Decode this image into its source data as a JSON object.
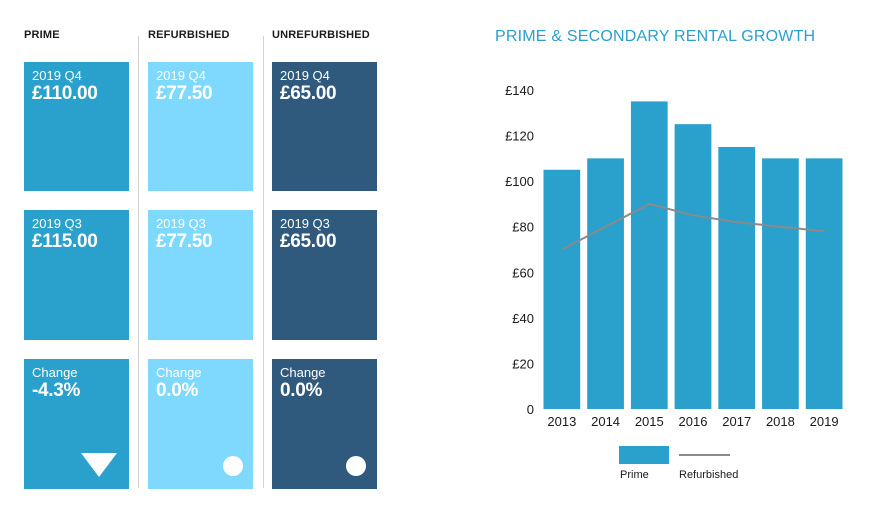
{
  "columns": [
    {
      "header": "PRIME",
      "tiles": [
        {
          "label": "2019 Q4",
          "value": "£110.00"
        },
        {
          "label": "2019 Q3",
          "value": "£115.00"
        },
        {
          "label": "Change",
          "value": "-4.3%"
        }
      ],
      "indicator": "down-triangle-icon"
    },
    {
      "header": "REFURBISHED",
      "tiles": [
        {
          "label": "2019 Q4",
          "value": "£77.50"
        },
        {
          "label": "2019 Q3",
          "value": "£77.50"
        },
        {
          "label": "Change",
          "value": "0.0%"
        }
      ],
      "indicator": "circle-icon"
    },
    {
      "header": "UNREFURBISHED",
      "tiles": [
        {
          "label": "2019 Q4",
          "value": "£65.00"
        },
        {
          "label": "2019 Q3",
          "value": "£65.00"
        },
        {
          "label": "Change",
          "value": "0.0%"
        }
      ],
      "indicator": "circle-icon"
    }
  ],
  "colors": {
    "prime": "#2aa0cc",
    "refurbished": "#7fd9ff",
    "unrefurbished": "#2f5a7e",
    "refurbished_line": "#8a8a8a"
  },
  "chart_data": {
    "type": "bar",
    "title": "PRIME & SECONDARY RENTAL GROWTH",
    "categories": [
      "2013",
      "2014",
      "2015",
      "2016",
      "2017",
      "2018",
      "2019"
    ],
    "series": [
      {
        "name": "Prime",
        "type": "bar",
        "values": [
          105,
          110,
          135,
          125,
          115,
          110,
          110
        ]
      },
      {
        "name": "Refurbished",
        "type": "line",
        "values": [
          70,
          80,
          90,
          85,
          82,
          80,
          78
        ]
      }
    ],
    "ylim": [
      0,
      140
    ],
    "yticks": [
      0,
      20,
      40,
      60,
      80,
      100,
      120,
      140
    ],
    "ytick_labels": [
      "0",
      "£20",
      "£40",
      "£60",
      "£80",
      "£100",
      "£120",
      "£140"
    ],
    "xlabel": "",
    "ylabel": "",
    "legend": [
      "Prime",
      "Refurbished"
    ]
  }
}
